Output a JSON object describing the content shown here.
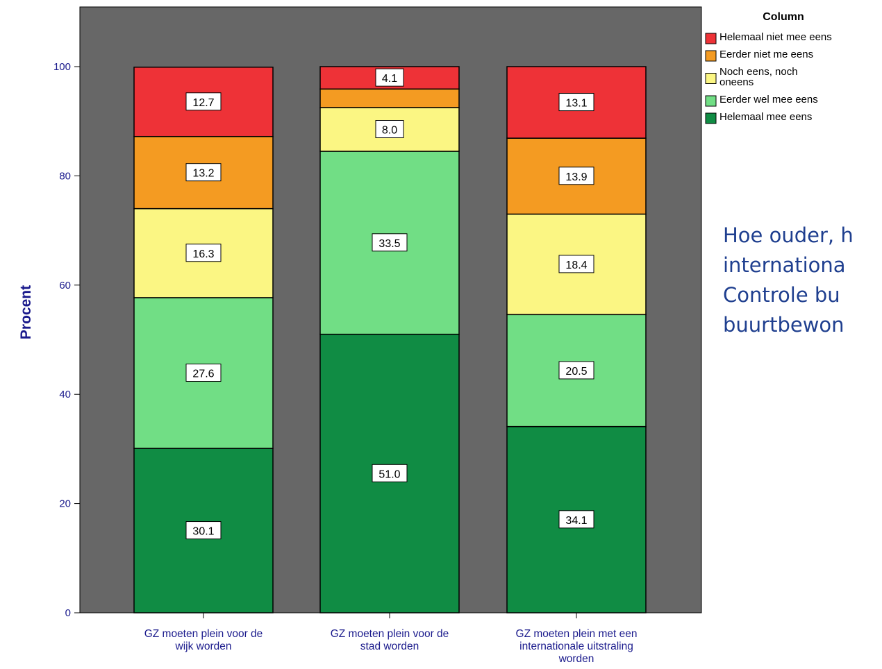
{
  "chart_data": {
    "type": "bar",
    "stacked": true,
    "ylabel": "Procent",
    "ylim": [
      0,
      100
    ],
    "yticks": [
      0,
      20,
      40,
      60,
      80,
      100
    ],
    "categories": [
      [
        "GZ moeten plein voor de",
        "wijk worden"
      ],
      [
        "GZ moeten plein voor de",
        "stad worden"
      ],
      [
        "GZ moeten plein met een",
        "internationale uitstraling",
        "worden"
      ]
    ],
    "legend_title": "Column",
    "legend_position": "top-right",
    "series": [
      {
        "name": "Helemaal mee eens",
        "legend_lines": [
          "Helemaal mee eens"
        ],
        "color": "#108c44",
        "values": [
          30.1,
          51.0,
          34.1
        ],
        "labels": [
          "30.1",
          "51.0",
          "34.1"
        ]
      },
      {
        "name": "Eerder wel mee eens",
        "legend_lines": [
          "Eerder wel mee eens"
        ],
        "color": "#71de85",
        "values": [
          27.6,
          33.5,
          20.5
        ],
        "labels": [
          "27.6",
          "33.5",
          "20.5"
        ]
      },
      {
        "name": "Noch eens, noch oneens",
        "legend_lines": [
          "Noch eens, noch",
          "oneens"
        ],
        "color": "#fbf683",
        "values": [
          16.3,
          8.0,
          18.4
        ],
        "labels": [
          "16.3",
          "8.0",
          "18.4"
        ]
      },
      {
        "name": "Eerder niet me eens",
        "legend_lines": [
          "Eerder niet me eens"
        ],
        "color": "#f49b22",
        "values": [
          13.2,
          3.4,
          13.9
        ],
        "labels": [
          "13.2",
          "",
          "13.9"
        ]
      },
      {
        "name": "Helemaal niet mee eens",
        "legend_lines": [
          "Helemaal niet mee eens"
        ],
        "color": "#ee3237",
        "values": [
          12.7,
          4.1,
          13.1
        ],
        "labels": [
          "12.7",
          "4.1",
          "13.1"
        ]
      }
    ],
    "plot_background": "#676767",
    "axis_label_color": "#1a1a8c",
    "grid": false
  },
  "side_note": {
    "lines": [
      "Hoe ouder, h",
      "internationa",
      "Controle bu",
      "buurtbewon"
    ]
  }
}
